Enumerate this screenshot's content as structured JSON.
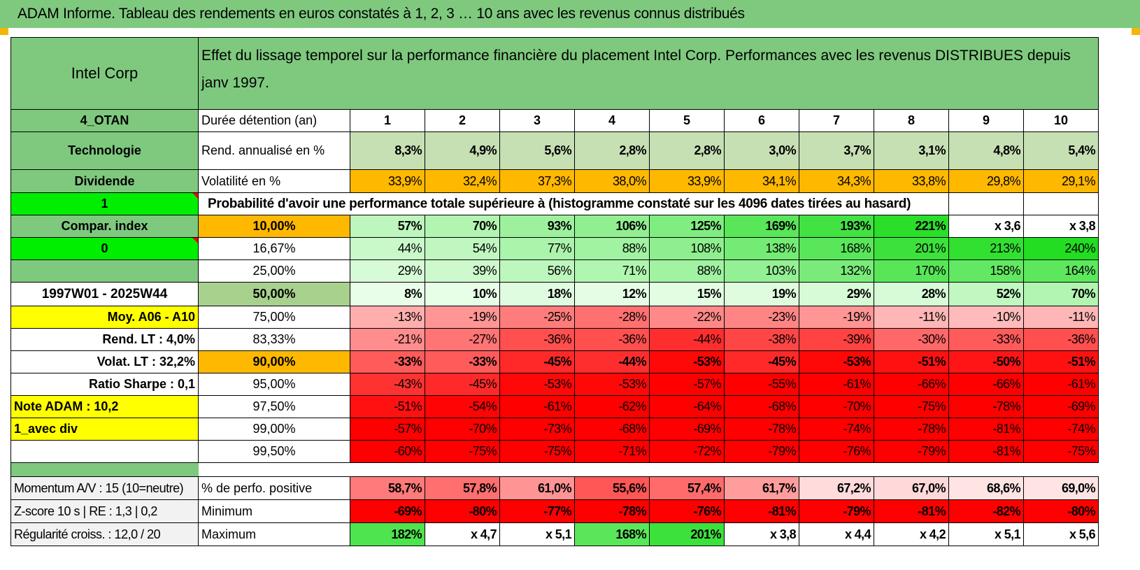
{
  "title": "ADAM Informe. Tableau des rendements en euros constatés à 1, 2, 3 … 10 ans avec les revenus connus distribués",
  "colors": {
    "header_green": "#7fc97f",
    "bright_green": "#00ee00",
    "yellow": "#ffff00",
    "orange": "#ffb800",
    "red": "#ff0000"
  },
  "company": "Intel Corp",
  "description": "Effet du lissage temporel sur la performance financière du placement Intel Corp. Performances avec les revenus DISTRIBUES depuis janv 1997.",
  "side": {
    "code": "4_OTAN",
    "sector": "Technologie",
    "type": "Dividende",
    "val1": "1",
    "compar": "Compar. index",
    "val0": "0",
    "period": "1997W01 - 2025W44",
    "moy": "Moy. A06 - A10",
    "rend_lt": "Rend. LT :   4,0%",
    "volat_lt": "Volat. LT :   32,2%",
    "sharpe": "Ratio Sharpe :    0,1",
    "note": "Note ADAM : 10,2",
    "avec_div": "1_avec div"
  },
  "labels": {
    "duree": "Durée détention (an)",
    "rend": "Rend. annualisé en %",
    "vol": "Volatilité en %",
    "proba": "Probabilité d'avoir une performance totale supérieure à (histogramme constaté sur les 4096 dates tirées au hasard)"
  },
  "years": [
    "1",
    "2",
    "3",
    "4",
    "5",
    "6",
    "7",
    "8",
    "9",
    "10"
  ],
  "rend": [
    "8,3%",
    "4,9%",
    "5,6%",
    "2,8%",
    "2,8%",
    "3,0%",
    "3,7%",
    "3,1%",
    "4,8%",
    "5,4%"
  ],
  "vol": [
    "33,9%",
    "32,4%",
    "37,3%",
    "38,0%",
    "33,9%",
    "34,1%",
    "34,3%",
    "33,8%",
    "29,8%",
    "29,1%"
  ],
  "rows": [
    {
      "p": "10,00%",
      "values": [
        "57%",
        "70%",
        "93%",
        "106%",
        "125%",
        "169%",
        "193%",
        "221%",
        "x 3,6",
        "x 3,8"
      ]
    },
    {
      "p": "16,67%",
      "values": [
        "44%",
        "54%",
        "77%",
        "88%",
        "108%",
        "138%",
        "168%",
        "201%",
        "213%",
        "240%"
      ]
    },
    {
      "p": "25,00%",
      "values": [
        "29%",
        "39%",
        "56%",
        "71%",
        "88%",
        "103%",
        "132%",
        "170%",
        "158%",
        "164%"
      ]
    },
    {
      "p": "50,00%",
      "values": [
        "8%",
        "10%",
        "18%",
        "12%",
        "15%",
        "19%",
        "29%",
        "28%",
        "52%",
        "70%"
      ]
    },
    {
      "p": "75,00%",
      "values": [
        "-13%",
        "-19%",
        "-25%",
        "-28%",
        "-22%",
        "-23%",
        "-19%",
        "-11%",
        "-10%",
        "-11%"
      ]
    },
    {
      "p": "83,33%",
      "values": [
        "-21%",
        "-27%",
        "-36%",
        "-36%",
        "-44%",
        "-38%",
        "-39%",
        "-30%",
        "-33%",
        "-36%"
      ]
    },
    {
      "p": "90,00%",
      "values": [
        "-33%",
        "-33%",
        "-45%",
        "-44%",
        "-53%",
        "-45%",
        "-53%",
        "-51%",
        "-50%",
        "-51%"
      ]
    },
    {
      "p": "95,00%",
      "values": [
        "-43%",
        "-45%",
        "-53%",
        "-53%",
        "-57%",
        "-55%",
        "-61%",
        "-66%",
        "-66%",
        "-61%"
      ]
    },
    {
      "p": "97,50%",
      "values": [
        "-51%",
        "-54%",
        "-61%",
        "-62%",
        "-64%",
        "-68%",
        "-70%",
        "-75%",
        "-78%",
        "-69%"
      ]
    },
    {
      "p": "99,00%",
      "values": [
        "-57%",
        "-70%",
        "-73%",
        "-68%",
        "-69%",
        "-78%",
        "-74%",
        "-78%",
        "-81%",
        "-74%"
      ]
    },
    {
      "p": "99,50%",
      "values": [
        "-60%",
        "-75%",
        "-75%",
        "-71%",
        "-72%",
        "-79%",
        "-76%",
        "-79%",
        "-81%",
        "-75%"
      ]
    }
  ],
  "bottom": [
    {
      "side": "Momentum A/V : 15 (10=neutre)",
      "label": "% de perfo. positive",
      "values": [
        "58,7%",
        "57,8%",
        "61,0%",
        "55,6%",
        "57,4%",
        "61,7%",
        "67,2%",
        "67,0%",
        "68,6%",
        "69,0%"
      ]
    },
    {
      "side": "Z-score 10 s | RE : 1,3 | 0,2",
      "label": "Minimum",
      "values": [
        "-69%",
        "-80%",
        "-77%",
        "-78%",
        "-76%",
        "-81%",
        "-79%",
        "-81%",
        "-82%",
        "-80%"
      ]
    },
    {
      "side": "Régularité croiss. : 12,0 / 20",
      "label": "Maximum",
      "values": [
        "182%",
        "x 4,7",
        "x 5,1",
        "168%",
        "201%",
        "x 3,8",
        "x 4,4",
        "x 4,2",
        "x 5,1",
        "x 5,6"
      ]
    }
  ]
}
